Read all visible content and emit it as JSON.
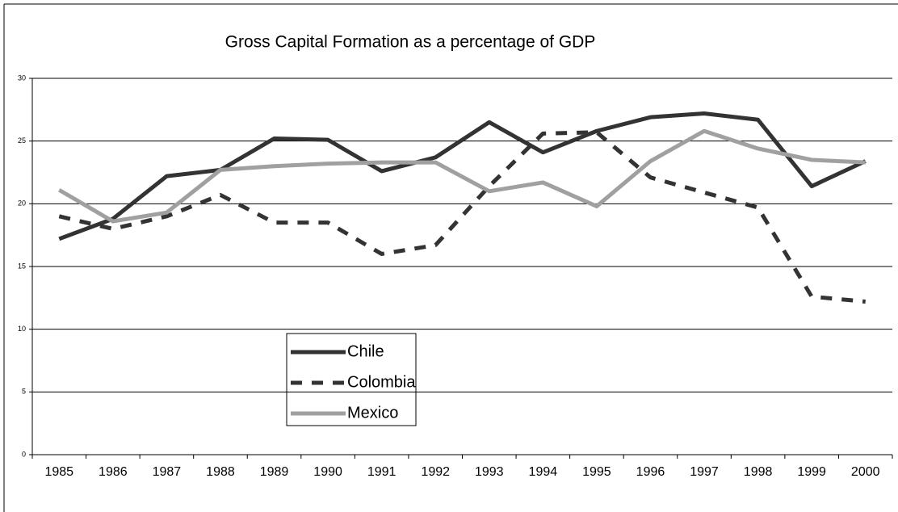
{
  "chart_data": {
    "type": "line",
    "title": "Gross Capital Formation as a percentage of GDP",
    "categories": [
      "1985",
      "1986",
      "1987",
      "1988",
      "1989",
      "1990",
      "1991",
      "1992",
      "1993",
      "1994",
      "1995",
      "1996",
      "1997",
      "1998",
      "1999",
      "2000"
    ],
    "series": [
      {
        "name": "Chile",
        "color": "#333333",
        "dash": false,
        "values": [
          17.2,
          18.8,
          22.2,
          22.7,
          25.2,
          25.1,
          22.6,
          23.7,
          26.5,
          24.1,
          25.8,
          26.9,
          27.2,
          26.7,
          21.4,
          23.4
        ]
      },
      {
        "name": "Colombia",
        "color": "#333333",
        "dash": true,
        "values": [
          19.0,
          18.0,
          19.0,
          20.7,
          18.5,
          18.5,
          16.0,
          16.7,
          21.4,
          25.6,
          25.7,
          22.1,
          20.9,
          19.7,
          12.6,
          12.2
        ]
      },
      {
        "name": "Mexico",
        "color": "#a0a0a0",
        "dash": false,
        "values": [
          21.1,
          18.6,
          19.3,
          22.7,
          23.0,
          23.2,
          23.3,
          23.3,
          21.0,
          21.7,
          19.8,
          23.4,
          25.8,
          24.4,
          23.5,
          23.3
        ]
      }
    ],
    "ylim": [
      0,
      30
    ],
    "yticks": [
      0,
      5,
      10,
      15,
      20,
      25,
      30
    ],
    "grid": true
  }
}
